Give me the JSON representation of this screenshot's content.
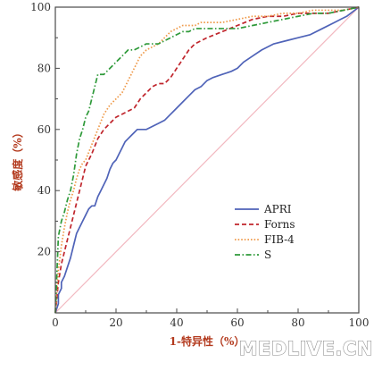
{
  "chart_data": {
    "type": "line",
    "xlabel": "1-特异性（%）",
    "ylabel": "敏感度（%）",
    "xlim": [
      0,
      100
    ],
    "ylim": [
      0,
      100
    ],
    "xticks": [
      0,
      20,
      40,
      60,
      80,
      100
    ],
    "yticks": [
      20,
      40,
      60,
      80,
      100
    ],
    "grid": false,
    "legend_position": "lower-right",
    "reference_line": {
      "x": [
        0,
        100
      ],
      "y": [
        0,
        100
      ],
      "color": "#f2b8c0"
    },
    "series": [
      {
        "name": "APRI",
        "color": "#4f63b8",
        "dash": "solid",
        "x": [
          0,
          1,
          1,
          2,
          2,
          3,
          4,
          5,
          6,
          7,
          8,
          9,
          10,
          11,
          12,
          13,
          14,
          15,
          16,
          17,
          18,
          19,
          20,
          21,
          22,
          23,
          24,
          25,
          26,
          27,
          28,
          30,
          32,
          34,
          36,
          38,
          40,
          42,
          44,
          46,
          48,
          50,
          52,
          55,
          58,
          60,
          62,
          65,
          68,
          72,
          76,
          80,
          84,
          88,
          92,
          96,
          100
        ],
        "y": [
          0,
          3,
          6,
          8,
          10,
          12,
          15,
          18,
          22,
          26,
          28,
          30,
          32,
          34,
          35,
          35,
          38,
          40,
          42,
          44,
          47,
          49,
          50,
          52,
          54,
          56,
          57,
          58,
          59,
          60,
          60,
          60,
          61,
          62,
          63,
          65,
          67,
          69,
          71,
          73,
          74,
          76,
          77,
          78,
          79,
          80,
          82,
          84,
          86,
          88,
          89,
          90,
          91,
          93,
          95,
          97,
          100
        ]
      },
      {
        "name": "Forns",
        "color": "#c0262d",
        "dash": "dashed",
        "x": [
          0,
          1,
          2,
          3,
          4,
          5,
          6,
          7,
          8,
          9,
          10,
          12,
          14,
          16,
          18,
          20,
          22,
          24,
          26,
          28,
          30,
          32,
          34,
          36,
          38,
          40,
          42,
          44,
          46,
          48,
          50,
          55,
          60,
          65,
          70,
          75,
          80,
          85,
          90,
          95,
          100
        ],
        "y": [
          0,
          10,
          16,
          20,
          24,
          28,
          32,
          36,
          40,
          44,
          48,
          52,
          57,
          60,
          62,
          64,
          65,
          66,
          67,
          70,
          72,
          74,
          75,
          75,
          77,
          80,
          83,
          86,
          88,
          89,
          90,
          92,
          94,
          96,
          97,
          97,
          98,
          98,
          98,
          99,
          100
        ]
      },
      {
        "name": "FIB-4",
        "color": "#ef9a4a",
        "dash": "dotted",
        "x": [
          0,
          1,
          2,
          3,
          4,
          5,
          6,
          7,
          8,
          9,
          10,
          12,
          14,
          16,
          18,
          20,
          22,
          24,
          26,
          28,
          30,
          32,
          34,
          36,
          38,
          40,
          42,
          44,
          46,
          48,
          50,
          55,
          60,
          65,
          70,
          75,
          80,
          85,
          90,
          95,
          100
        ],
        "y": [
          0,
          14,
          22,
          28,
          33,
          37,
          40,
          44,
          47,
          49,
          50,
          55,
          60,
          65,
          68,
          70,
          72,
          76,
          80,
          84,
          86,
          87,
          88,
          90,
          92,
          93,
          94,
          94,
          94,
          95,
          95,
          95,
          96,
          97,
          97,
          98,
          98,
          99,
          99,
          99,
          100
        ]
      },
      {
        "name": "S",
        "color": "#2f9a3a",
        "dash": "dashdot",
        "x": [
          0,
          1,
          2,
          3,
          4,
          5,
          6,
          7,
          8,
          9,
          10,
          11,
          12,
          13,
          14,
          15,
          16,
          18,
          20,
          22,
          24,
          26,
          28,
          30,
          32,
          34,
          36,
          38,
          40,
          42,
          44,
          46,
          48,
          50,
          55,
          60,
          65,
          70,
          75,
          80,
          85,
          90,
          95,
          100
        ],
        "y": [
          0,
          25,
          30,
          33,
          37,
          40,
          45,
          52,
          57,
          60,
          64,
          66,
          70,
          74,
          78,
          78,
          78,
          80,
          82,
          84,
          86,
          86,
          87,
          88,
          88,
          88,
          89,
          90,
          91,
          92,
          92,
          93,
          93,
          93,
          93,
          93,
          94,
          95,
          96,
          97,
          98,
          98,
          99,
          100
        ]
      }
    ]
  },
  "watermark": "MEDLIVE.CN"
}
